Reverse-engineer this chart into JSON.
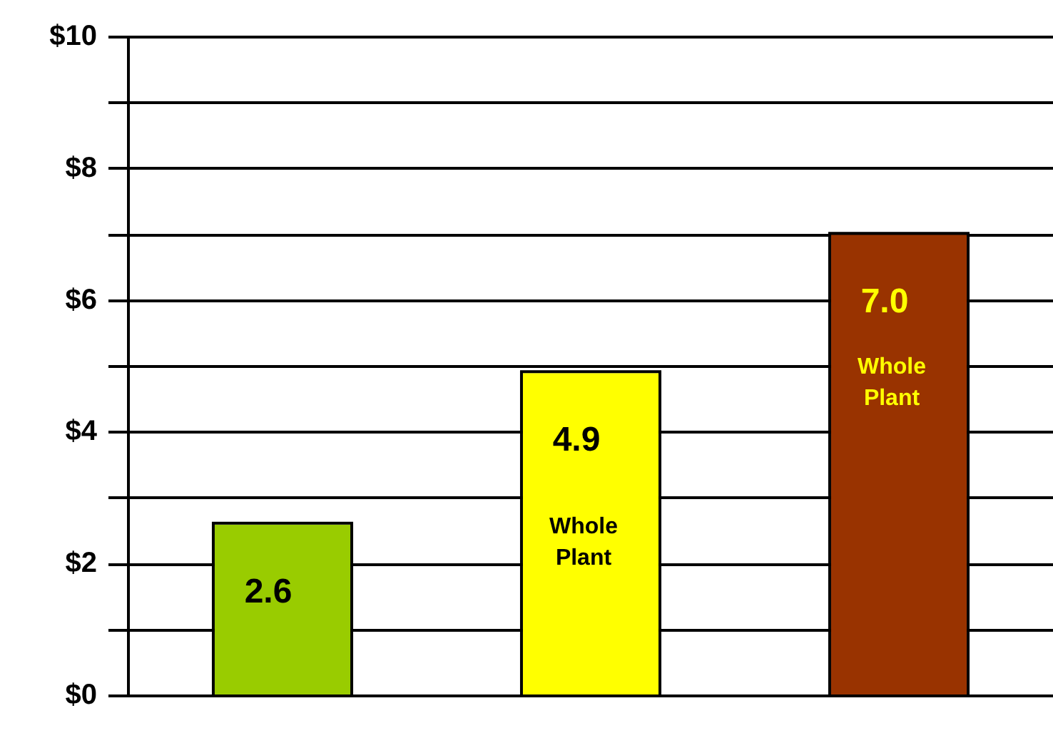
{
  "chart_data": {
    "type": "bar",
    "categories": [
      null,
      null,
      null
    ],
    "values": [
      2.6,
      4.9,
      7.0
    ],
    "colors": [
      "#99cc00",
      "#ffff00",
      "#993300"
    ],
    "data_labels": true,
    "value_labels": [
      "2.6",
      "4.9",
      "7.0"
    ],
    "annotations": [
      "Whole Plant",
      "Whole Plant"
    ],
    "ylim": [
      0,
      10
    ],
    "yticks": [
      {
        "value": 0,
        "label": "$0"
      },
      {
        "value": 1,
        "label": null
      },
      {
        "value": 2,
        "label": "$2"
      },
      {
        "value": 3,
        "label": null
      },
      {
        "value": 4,
        "label": "$4"
      },
      {
        "value": 5,
        "label": null
      },
      {
        "value": 6,
        "label": "$6"
      },
      {
        "value": 7,
        "label": null
      },
      {
        "value": 8,
        "label": "$8"
      },
      {
        "value": 9,
        "label": null
      },
      {
        "value": 10,
        "label": "$10"
      }
    ],
    "grid": "y",
    "legend": false
  }
}
